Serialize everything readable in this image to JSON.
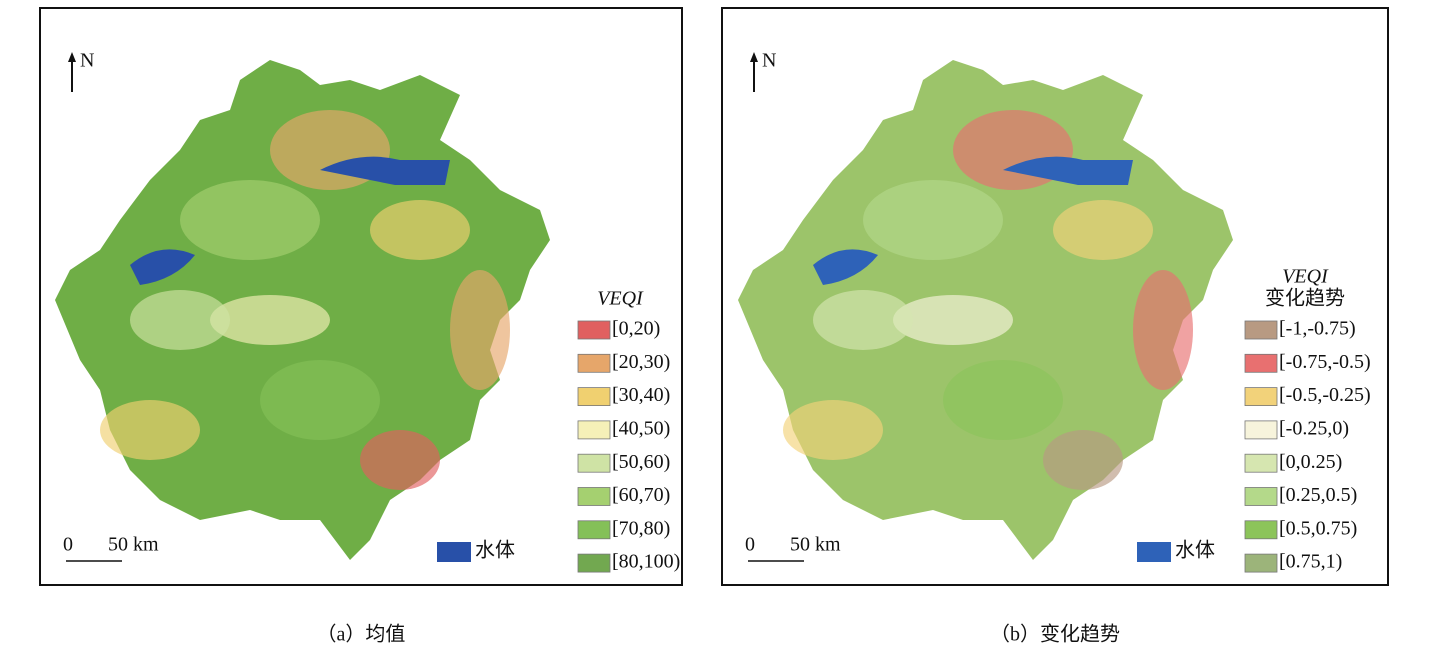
{
  "panels": [
    {
      "north": "N",
      "scale": {
        "start": "0",
        "end": "50 km"
      },
      "legend": {
        "title": [
          "VEQI"
        ],
        "items": [
          {
            "label": "[0,20)",
            "color": "#e06060"
          },
          {
            "label": "[20,30)",
            "color": "#e6a66a"
          },
          {
            "label": "[30,40)",
            "color": "#f0d070"
          },
          {
            "label": "[40,50)",
            "color": "#f5f0b8"
          },
          {
            "label": "[50,60)",
            "color": "#cfe3a5"
          },
          {
            "label": "[60,70)",
            "color": "#a5d070"
          },
          {
            "label": "[70,80)",
            "color": "#84c058"
          },
          {
            "label": "[80,100)",
            "color": "#72a850"
          }
        ]
      },
      "water": {
        "label": "水体",
        "color": "#2850a8"
      },
      "caption": "（a）均值"
    },
    {
      "north": "N",
      "scale": {
        "start": "0",
        "end": "50 km"
      },
      "legend": {
        "title": [
          "VEQI",
          "变化趋势"
        ],
        "items": [
          {
            "label": "[-1,-0.75)",
            "color": "#b89a82"
          },
          {
            "label": "[-0.75,-0.5)",
            "color": "#e87070"
          },
          {
            "label": "[-0.5,-0.25)",
            "color": "#f2d27a"
          },
          {
            "label": "[-0.25,0)",
            "color": "#f7f4dc"
          },
          {
            "label": "[0,0.25)",
            "color": "#d6e6b0"
          },
          {
            "label": "[0.25,0.5)",
            "color": "#b4d98a"
          },
          {
            "label": "[0.5,0.75)",
            "color": "#8cc45a"
          },
          {
            "label": "[0.75,1)",
            "color": "#9cb47a"
          }
        ]
      },
      "water": {
        "label": "水体",
        "color": "#2e62b8"
      },
      "caption": "（b）变化趋势"
    }
  ]
}
